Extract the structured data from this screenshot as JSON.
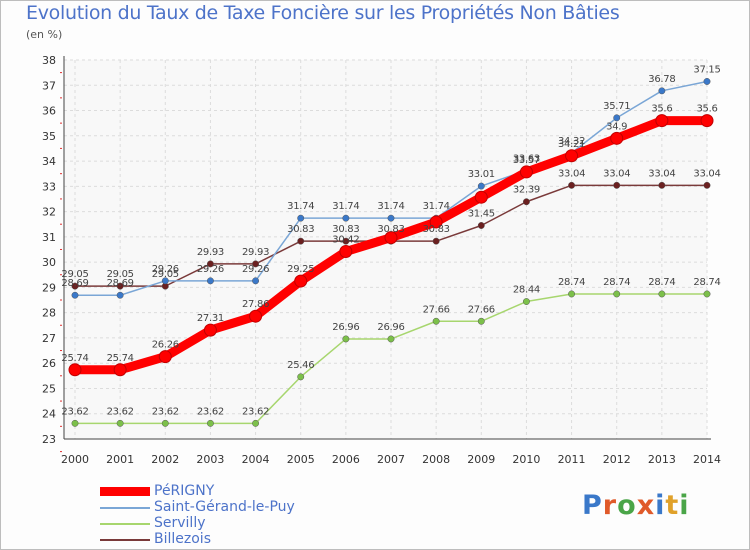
{
  "title": "Evolution du Taux de Taxe Foncière sur les Propriétés Non Bâties",
  "unit": "(en %)",
  "logo_letters": [
    "P",
    "r",
    "o",
    "x",
    "i",
    "t",
    "i"
  ],
  "logo_colors": [
    "#3a78c9",
    "#e05a2a",
    "#4aa548",
    "#e05a2a",
    "#3a78c9",
    "#e0a12a",
    "#4aa548"
  ],
  "chart_data": {
    "type": "line",
    "title": "Evolution du Taux de Taxe Foncière sur les Propriétés Non Bâties",
    "ylabel": "(en %)",
    "xlabel": "",
    "x": [
      "2000",
      "2001",
      "2002",
      "2003",
      "2004",
      "2005",
      "2006",
      "2007",
      "2008",
      "2009",
      "2010",
      "2011",
      "2012",
      "2013",
      "2014"
    ],
    "ylim": [
      23,
      38
    ],
    "yticks": [
      "23",
      "24",
      "25",
      "26",
      "27",
      "28",
      "29",
      "30",
      "31",
      "32",
      "33",
      "34",
      "35",
      "36",
      "37",
      "38"
    ],
    "grid": true,
    "legend": "bottom-left",
    "series": [
      {
        "name": "PéRIGNY",
        "color": "#ff0000",
        "marker": "#ff0000",
        "values": [
          25.74,
          25.74,
          26.26,
          27.31,
          27.86,
          29.25,
          30.42,
          30.97,
          31.59,
          32.57,
          33.57,
          34.21,
          34.9,
          35.6,
          35.6
        ],
        "labels": [
          "25.74",
          "25.74",
          "26.26",
          "27.31",
          "27.86",
          "29.25",
          "30.42",
          "",
          "",
          "",
          "33.57",
          "34.21",
          "34.9",
          "35.6",
          "35.6"
        ]
      },
      {
        "name": "Saint-Gérand-le-Puy",
        "color": "#7aa6d6",
        "marker": "#3a78c9",
        "values": [
          28.69,
          28.69,
          29.26,
          29.26,
          29.26,
          31.74,
          31.74,
          31.74,
          31.74,
          33.01,
          33.63,
          34.32,
          35.71,
          36.78,
          37.15
        ],
        "labels": [
          "28.69",
          "28.69",
          "29.26",
          "29.26",
          "29.26",
          "31.74",
          "31.74",
          "31.74",
          "31.74",
          "33.01",
          "33.63",
          "34.32",
          "35.71",
          "36.78",
          "37.15"
        ]
      },
      {
        "name": "Servilly",
        "color": "#a7d66e",
        "marker": "#7cc04a",
        "values": [
          23.62,
          23.62,
          23.62,
          23.62,
          23.62,
          25.46,
          26.96,
          26.96,
          27.66,
          27.66,
          28.44,
          28.74,
          28.74,
          28.74,
          28.74
        ],
        "labels": [
          "23.62",
          "23.62",
          "23.62",
          "23.62",
          "23.62",
          "25.46",
          "26.96",
          "26.96",
          "27.66",
          "27.66",
          "28.44",
          "28.74",
          "28.74",
          "28.74",
          "28.74"
        ]
      },
      {
        "name": "Billezois",
        "color": "#7a3a3a",
        "marker": "#6b2020",
        "values": [
          29.05,
          29.05,
          29.05,
          29.93,
          29.93,
          30.83,
          30.83,
          30.83,
          30.83,
          31.45,
          32.39,
          33.04,
          33.04,
          33.04,
          33.04
        ],
        "labels": [
          "29.05",
          "29.05",
          "29.05",
          "29.93",
          "29.93",
          "30.83",
          "30.83",
          "30.83",
          "30.83",
          "31.45",
          "32.39",
          "33.04",
          "33.04",
          "33.04",
          "33.04"
        ]
      }
    ]
  }
}
